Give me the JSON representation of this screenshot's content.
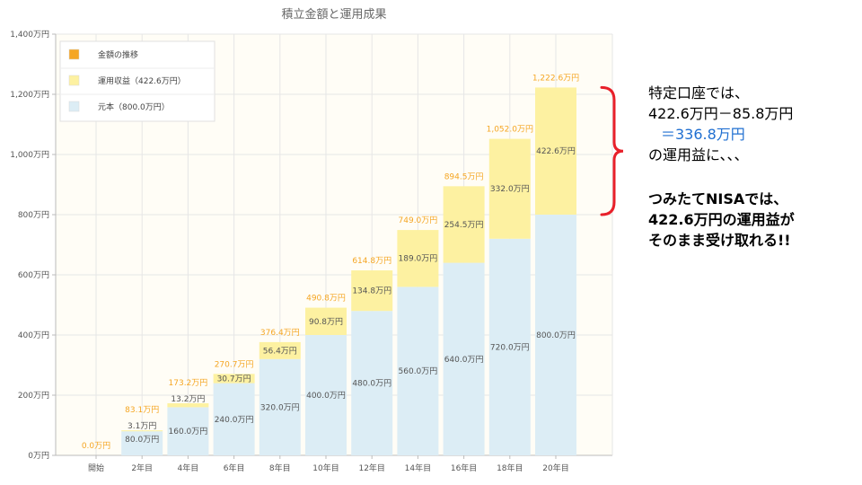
{
  "chart_data": {
    "type": "bar",
    "stacked": true,
    "title": "積立金額と運用成果",
    "categories": [
      "開始",
      "2年目",
      "4年目",
      "6年目",
      "8年目",
      "10年目",
      "12年目",
      "14年目",
      "16年目",
      "18年目",
      "20年目"
    ],
    "ylim": [
      0,
      1400
    ],
    "yticks": [
      "0万円",
      "200万円",
      "400万円",
      "600万円",
      "800万円",
      "1,000万円",
      "1,200万円",
      "1,400万円"
    ],
    "grid": true,
    "legend_position": "top-left",
    "series": [
      {
        "name": "元本（800.0万円）",
        "color": "#dcedf5",
        "values": [
          0,
          80.0,
          160.0,
          240.0,
          320.0,
          400.0,
          480.0,
          560.0,
          640.0,
          720.0,
          800.0
        ],
        "labels": [
          "",
          "80.0万円",
          "160.0万円",
          "240.0万円",
          "320.0万円",
          "400.0万円",
          "480.0万円",
          "560.0万円",
          "640.0万円",
          "720.0万円",
          "800.0万円"
        ]
      },
      {
        "name": "運用収益（422.6万円）",
        "color": "#fdf1a1",
        "values": [
          0,
          3.1,
          13.2,
          30.7,
          56.4,
          90.8,
          134.8,
          189.0,
          254.5,
          332.0,
          422.6
        ],
        "labels": [
          "",
          "3.1万円",
          "13.2万円",
          "30.7万円",
          "56.4万円",
          "90.8万円",
          "134.8万円",
          "189.0万円",
          "254.5万円",
          "332.0万円",
          "422.6万円"
        ]
      }
    ],
    "totals": {
      "name": "金額の推移",
      "color": "#f5a623",
      "values": [
        0.0,
        83.1,
        173.2,
        270.7,
        376.4,
        490.8,
        614.8,
        749.0,
        894.5,
        1052.0,
        1222.6
      ],
      "labels": [
        "0.0万円",
        "83.1万円",
        "173.2万円",
        "270.7万円",
        "376.4万円",
        "490.8万円",
        "614.8万円",
        "749.0万円",
        "894.5万円",
        "1,052.0万円",
        "1,222.6万円"
      ]
    }
  },
  "colors": {
    "grid": "#e6e6e6",
    "axis": "#bbbbbb",
    "plot_background": "#fffdf6",
    "brace": "#e8202a",
    "highlight": "#1f6fd1"
  },
  "annotation": {
    "line1": "特定口座では、",
    "line2": "422.6万円－85.8万円",
    "line3": "＝336.8万円",
    "line4": "の運用益に、、、"
  },
  "nisa_note": {
    "line1": "つみたてNISAでは、",
    "line2": "422.6万円の運用益が",
    "line3": "そのまま受け取れる!!"
  }
}
